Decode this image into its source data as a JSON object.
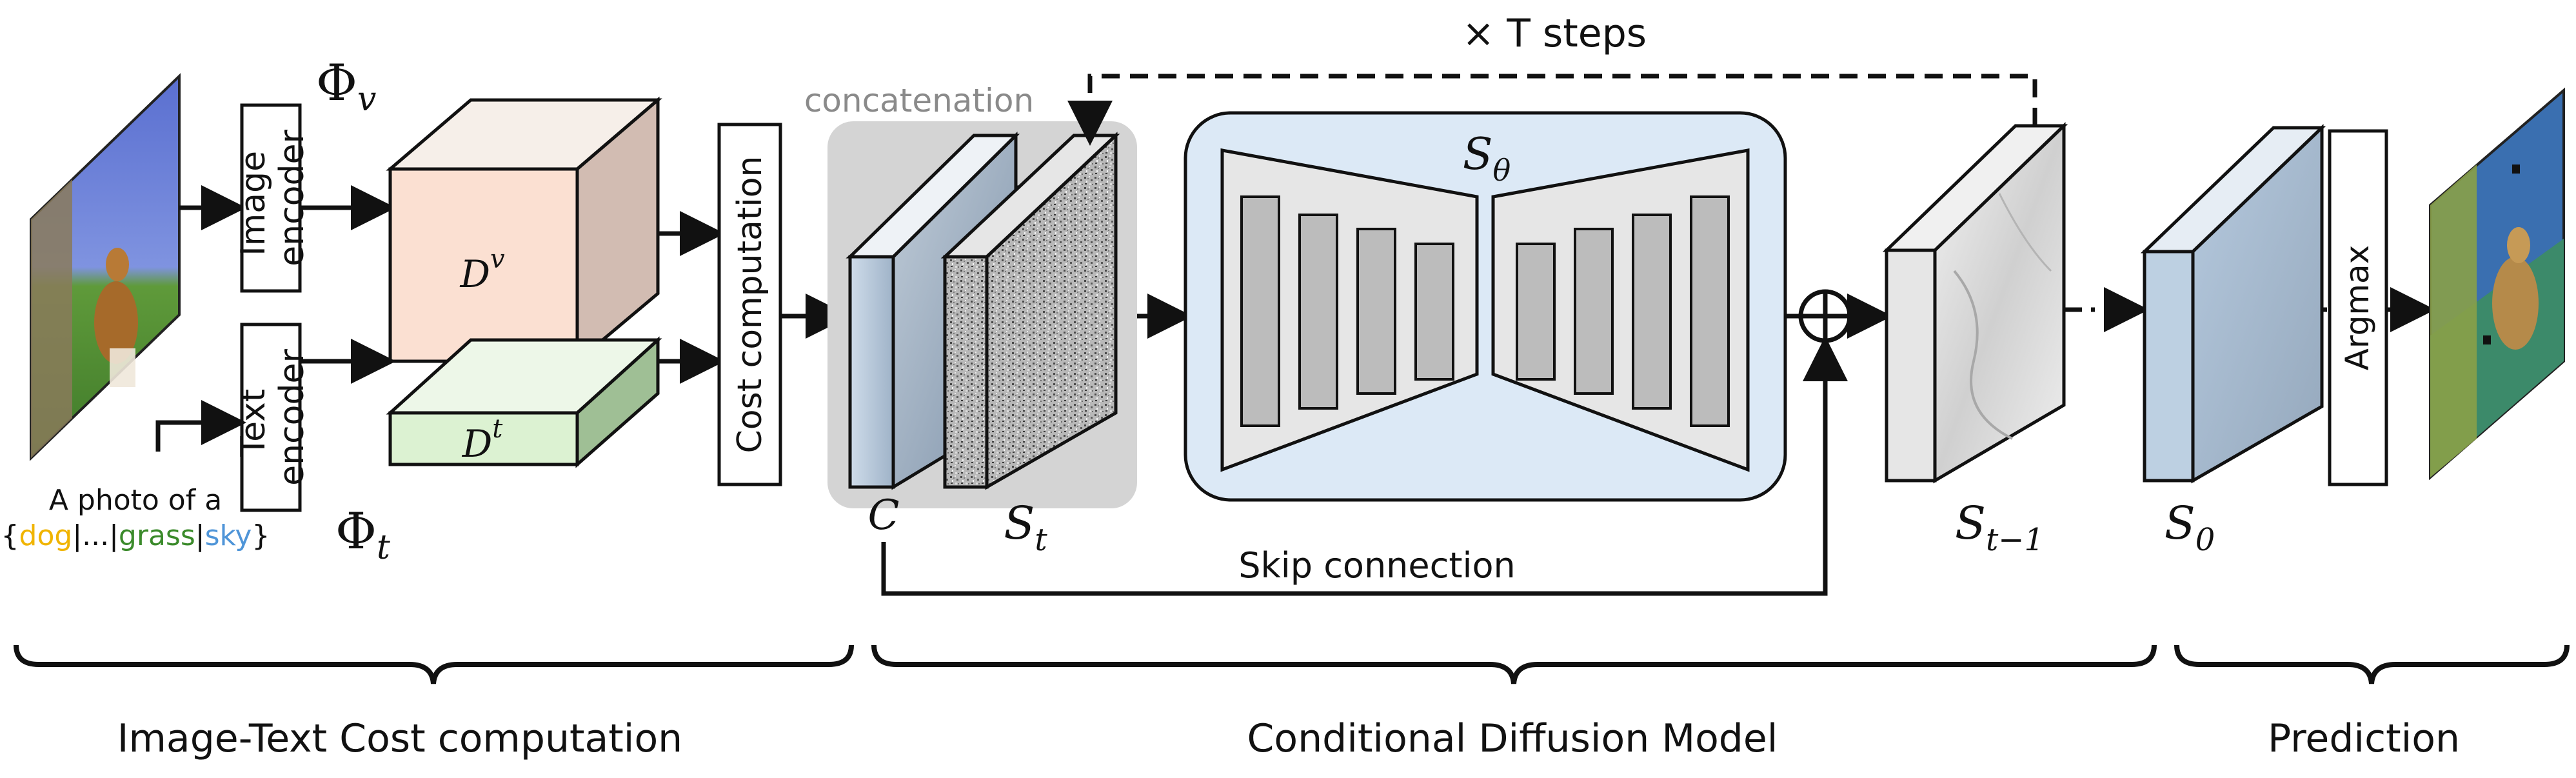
{
  "image_encoder": {
    "line1": "Image",
    "line2": "encoder"
  },
  "text_encoder": {
    "line1": "Text",
    "line2": "encoder"
  },
  "phi_v": {
    "base": "Φ",
    "sub": "v"
  },
  "phi_t": {
    "base": "Φ",
    "sub": "t"
  },
  "dv": {
    "base": "D",
    "sup": "v"
  },
  "dt": {
    "base": "D",
    "sup": "t"
  },
  "cost_computation": "Cost computation",
  "concatenation": "concatenation",
  "c_label": "C",
  "st": {
    "base": "S",
    "sub": "t"
  },
  "s_theta": {
    "base": "S",
    "sub": "θ"
  },
  "times_t_steps": "× T steps",
  "st1": {
    "base": "S",
    "sub": "t−1"
  },
  "s0": {
    "base": "S",
    "sub": "0"
  },
  "argmax": "Argmax",
  "skip_connection": "Skip connection",
  "prompt": {
    "line1": "A photo of a",
    "open": "{",
    "dog": "dog",
    "sep1": "|...|",
    "grass": "grass",
    "sep2": "|",
    "sky": "sky",
    "close": "}"
  },
  "sections": {
    "left": "Image-Text Cost computation",
    "middle": "Conditional Diffusion Model",
    "right": "Prediction"
  },
  "colors": {
    "dog": "#f0b400",
    "grass": "#3a8a2a",
    "sky": "#4f95d8",
    "dv_face": "#fbe0d2",
    "dt_face": "#dcf2d2",
    "unet_bg": "#dce9f6",
    "concat_bg": "#d4d4d4"
  }
}
